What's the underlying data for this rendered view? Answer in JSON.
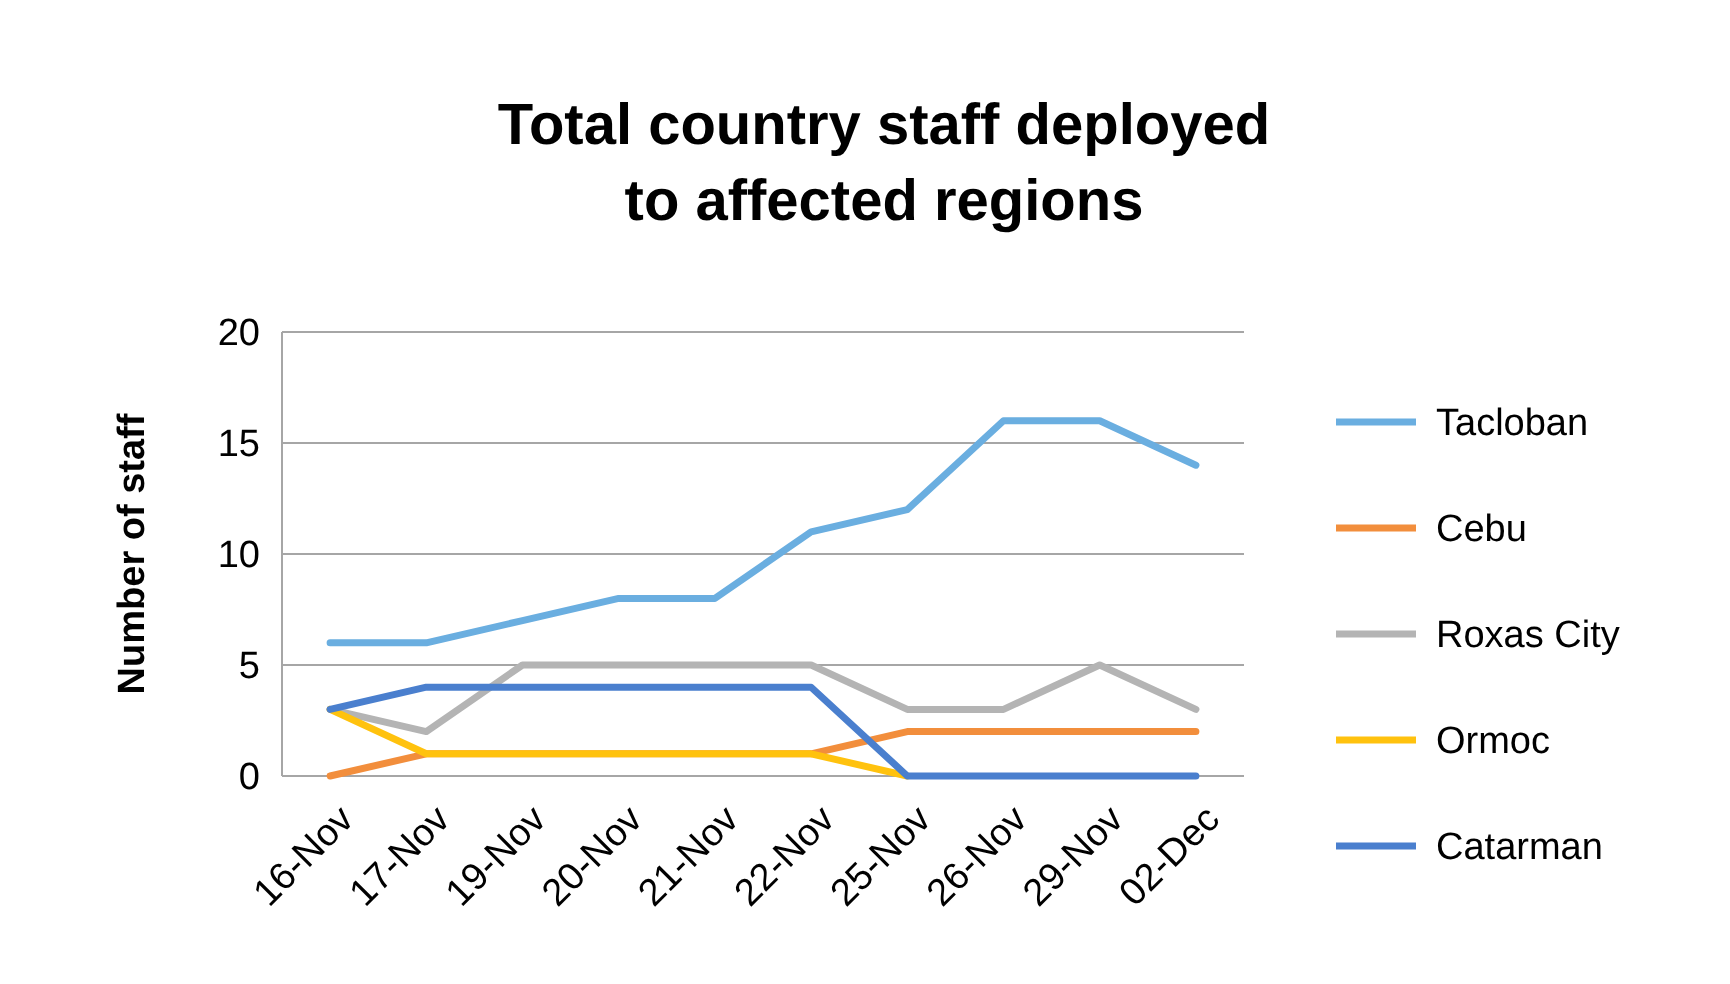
{
  "chart_data": {
    "type": "line",
    "title": "Total country staff deployed to affected regions",
    "ylabel": "Number of staff",
    "categories": [
      "16-Nov",
      "17-Nov",
      "19-Nov",
      "20-Nov",
      "21-Nov",
      "22-Nov",
      "25-Nov",
      "26-Nov",
      "29-Nov",
      "02-Dec"
    ],
    "series": [
      {
        "name": "Tacloban",
        "color": "#6aaee0",
        "values": [
          6,
          6,
          7,
          8,
          8,
          11,
          12,
          16,
          16,
          14
        ]
      },
      {
        "name": "Cebu",
        "color": "#f28e3c",
        "values": [
          0,
          1,
          1,
          1,
          1,
          1,
          2,
          2,
          2,
          2
        ]
      },
      {
        "name": "Roxas City",
        "color": "#b4b4b4",
        "values": [
          3,
          2,
          5,
          5,
          5,
          5,
          3,
          3,
          5,
          3
        ]
      },
      {
        "name": "Ormoc",
        "color": "#ffc20e",
        "values": [
          3,
          1,
          1,
          1,
          1,
          1,
          0,
          null,
          null,
          null
        ]
      },
      {
        "name": "Catarman",
        "color": "#4a7fce",
        "values": [
          3,
          4,
          4,
          4,
          4,
          4,
          0,
          0,
          0,
          0
        ]
      }
    ],
    "ylim": [
      0,
      20
    ],
    "yticks": [
      0,
      5,
      10,
      15,
      20
    ],
    "grid": "y",
    "legend": "right",
    "marker": "none",
    "line_style": "solid"
  }
}
